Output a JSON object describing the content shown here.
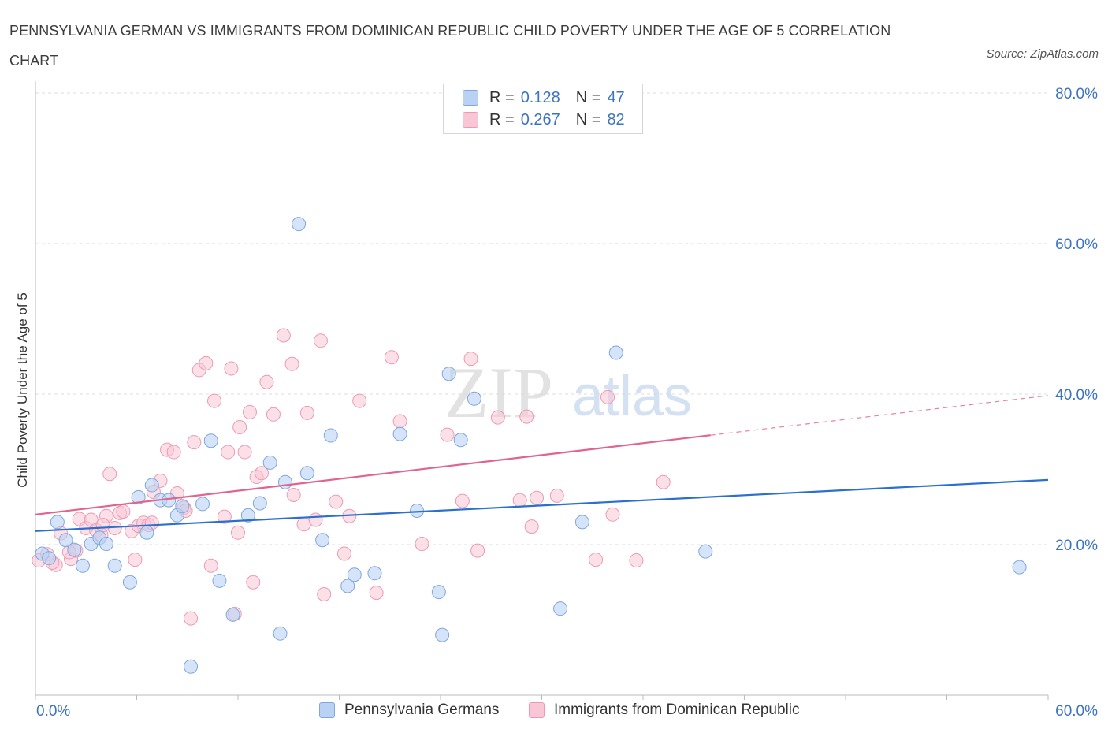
{
  "title": "PENNSYLVANIA GERMAN VS IMMIGRANTS FROM DOMINICAN REPUBLIC CHILD POVERTY UNDER THE AGE OF 5 CORRELATION CHART",
  "source": "Source: ZipAtlas.com",
  "watermark": {
    "zip": "ZIP",
    "atlas": "atlas"
  },
  "legend_top": [
    {
      "r_label": "R =",
      "r_value": "0.128",
      "n_label": "N =",
      "n_value": "47"
    },
    {
      "r_label": "R =",
      "r_value": "0.267",
      "n_label": "N =",
      "n_value": "82"
    }
  ],
  "colors": {
    "blue_fill": "#b9d2f3",
    "blue_stroke": "#7fa7de",
    "blue_line": "#2b6fcf",
    "pink_fill": "#f9c6d5",
    "pink_stroke": "#ec9ab4",
    "pink_line": "#e0648e",
    "tick_label": "#3d73c4",
    "grid": "#dddddd"
  },
  "chart_data": {
    "type": "scatter",
    "title": "PENNSYLVANIA GERMAN VS IMMIGRANTS FROM DOMINICAN REPUBLIC CHILD POVERTY UNDER THE AGE OF 5 CORRELATION CHART",
    "xlabel": "",
    "ylabel": "Child Poverty Under the Age of 5",
    "xlim": [
      0,
      60
    ],
    "ylim": [
      0,
      80
    ],
    "x_tick_labels": [
      "0.0%",
      "60.0%"
    ],
    "y_ticks": [
      20,
      40,
      60,
      80
    ],
    "y_tick_labels": [
      "20.0%",
      "40.0%",
      "60.0%",
      "80.0%"
    ],
    "grid": "horizontal dashed",
    "legend_position": "top-center",
    "series": [
      {
        "name": "Pennsylvania Germans",
        "color": "#b9d2f3",
        "trend": {
          "x": [
            0,
            60
          ],
          "y": [
            21.8,
            28.6
          ],
          "dashed_from": null
        },
        "points": [
          [
            0.4,
            18.8
          ],
          [
            0.8,
            18.2
          ],
          [
            1.3,
            23.0
          ],
          [
            1.8,
            20.6
          ],
          [
            2.3,
            19.3
          ],
          [
            2.8,
            17.2
          ],
          [
            3.3,
            20.1
          ],
          [
            3.8,
            20.9
          ],
          [
            4.2,
            20.1
          ],
          [
            4.7,
            17.2
          ],
          [
            5.6,
            15.0
          ],
          [
            6.1,
            26.3
          ],
          [
            6.6,
            21.6
          ],
          [
            6.9,
            27.9
          ],
          [
            7.4,
            25.9
          ],
          [
            7.9,
            25.9
          ],
          [
            8.4,
            23.9
          ],
          [
            8.7,
            25.1
          ],
          [
            9.2,
            3.8
          ],
          [
            9.9,
            25.4
          ],
          [
            10.4,
            33.8
          ],
          [
            10.9,
            15.2
          ],
          [
            11.7,
            10.7
          ],
          [
            12.6,
            23.9
          ],
          [
            13.3,
            25.5
          ],
          [
            13.9,
            30.9
          ],
          [
            14.5,
            8.2
          ],
          [
            14.8,
            28.3
          ],
          [
            15.6,
            62.6
          ],
          [
            16.1,
            29.5
          ],
          [
            17.0,
            20.6
          ],
          [
            17.5,
            34.5
          ],
          [
            18.5,
            14.5
          ],
          [
            18.9,
            16.0
          ],
          [
            20.1,
            16.2
          ],
          [
            21.6,
            34.7
          ],
          [
            22.6,
            24.5
          ],
          [
            23.9,
            13.7
          ],
          [
            24.1,
            8.0
          ],
          [
            24.5,
            42.7
          ],
          [
            25.2,
            33.9
          ],
          [
            26.0,
            39.4
          ],
          [
            31.1,
            11.5
          ],
          [
            32.4,
            23.0
          ],
          [
            34.4,
            45.5
          ],
          [
            39.7,
            19.1
          ],
          [
            58.3,
            17.0
          ]
        ]
      },
      {
        "name": "Immigrants from Dominican Republic",
        "color": "#f9c6d5",
        "trend": {
          "x": [
            0,
            60
          ],
          "y": [
            24.0,
            39.8
          ],
          "dashed_from": 40
        },
        "points": [
          [
            0.2,
            17.9
          ],
          [
            0.7,
            18.7
          ],
          [
            1.2,
            17.3
          ],
          [
            1.5,
            21.5
          ],
          [
            2.1,
            18.1
          ],
          [
            2.4,
            19.2
          ],
          [
            2.6,
            23.4
          ],
          [
            3.0,
            22.2
          ],
          [
            3.3,
            23.3
          ],
          [
            3.6,
            21.9
          ],
          [
            3.9,
            21.3
          ],
          [
            4.2,
            23.8
          ],
          [
            4.4,
            29.4
          ],
          [
            4.7,
            22.2
          ],
          [
            5.0,
            24.2
          ],
          [
            5.2,
            24.4
          ],
          [
            5.7,
            21.8
          ],
          [
            5.9,
            18.0
          ],
          [
            6.1,
            22.5
          ],
          [
            6.4,
            22.9
          ],
          [
            6.7,
            22.6
          ],
          [
            7.0,
            27.0
          ],
          [
            7.4,
            28.5
          ],
          [
            7.8,
            32.6
          ],
          [
            8.2,
            32.3
          ],
          [
            8.4,
            26.8
          ],
          [
            8.8,
            24.9
          ],
          [
            9.2,
            10.2
          ],
          [
            9.4,
            33.6
          ],
          [
            9.7,
            43.2
          ],
          [
            10.1,
            44.1
          ],
          [
            10.4,
            17.2
          ],
          [
            10.6,
            39.1
          ],
          [
            11.2,
            23.7
          ],
          [
            11.4,
            32.3
          ],
          [
            11.6,
            43.4
          ],
          [
            11.8,
            10.8
          ],
          [
            12.1,
            35.6
          ],
          [
            12.4,
            32.3
          ],
          [
            12.7,
            37.6
          ],
          [
            12.9,
            15.0
          ],
          [
            13.1,
            29.0
          ],
          [
            13.4,
            29.5
          ],
          [
            13.7,
            41.6
          ],
          [
            14.1,
            37.3
          ],
          [
            14.7,
            47.8
          ],
          [
            15.2,
            44.0
          ],
          [
            15.3,
            26.6
          ],
          [
            16.1,
            37.5
          ],
          [
            16.6,
            23.3
          ],
          [
            16.9,
            47.1
          ],
          [
            17.1,
            13.4
          ],
          [
            17.8,
            25.7
          ],
          [
            18.3,
            18.8
          ],
          [
            18.6,
            23.8
          ],
          [
            19.2,
            39.1
          ],
          [
            20.2,
            13.6
          ],
          [
            21.1,
            44.9
          ],
          [
            21.6,
            36.4
          ],
          [
            22.9,
            20.1
          ],
          [
            24.4,
            34.6
          ],
          [
            25.3,
            25.8
          ],
          [
            25.8,
            44.7
          ],
          [
            26.2,
            19.2
          ],
          [
            27.4,
            36.9
          ],
          [
            28.7,
            25.9
          ],
          [
            29.1,
            37.0
          ],
          [
            29.4,
            22.4
          ],
          [
            29.7,
            26.2
          ],
          [
            30.9,
            26.5
          ],
          [
            33.2,
            18.0
          ],
          [
            33.9,
            39.6
          ],
          [
            34.2,
            24.0
          ],
          [
            35.6,
            17.9
          ],
          [
            37.2,
            28.3
          ],
          [
            2.0,
            19.0
          ],
          [
            6.9,
            22.9
          ],
          [
            12.0,
            21.6
          ],
          [
            1.0,
            17.6
          ],
          [
            4.0,
            22.6
          ],
          [
            8.9,
            24.5
          ],
          [
            15.9,
            22.7
          ]
        ]
      }
    ]
  },
  "legend_bottom": [
    {
      "label": "Pennsylvania Germans"
    },
    {
      "label": "Immigrants from Dominican Republic"
    }
  ]
}
